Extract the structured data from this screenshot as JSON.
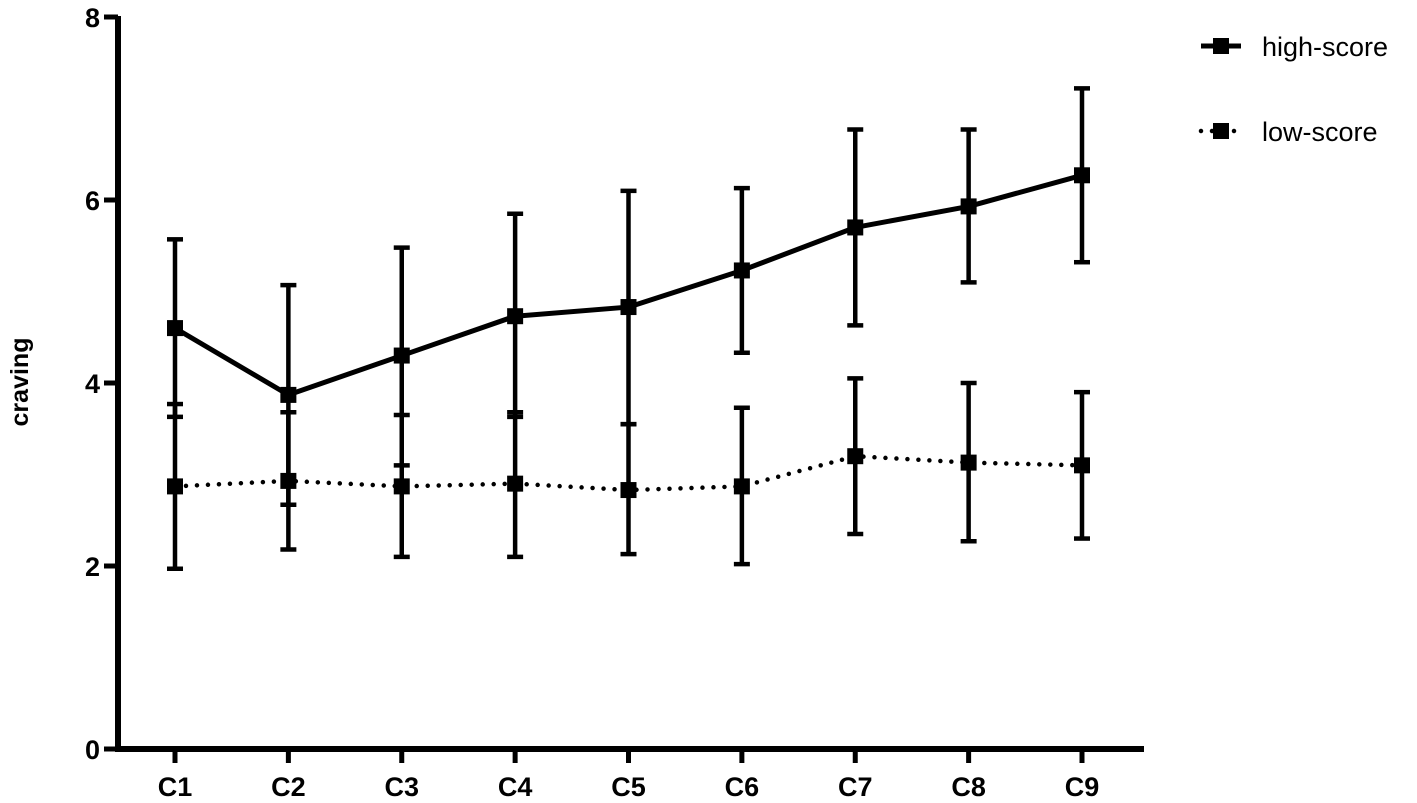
{
  "chart_data": {
    "type": "line",
    "title": "",
    "xlabel": "",
    "ylabel": "craving",
    "ylim": [
      0,
      8
    ],
    "yticks": [
      0,
      2,
      4,
      6,
      8
    ],
    "categories": [
      "C1",
      "C2",
      "C3",
      "C4",
      "C5",
      "C6",
      "C7",
      "C8",
      "C9"
    ],
    "grid": false,
    "legend_position": "top-right",
    "series": [
      {
        "name": "high-score",
        "line_style": "solid",
        "marker": "square",
        "color": "#000000",
        "values": [
          4.6,
          3.87,
          4.3,
          4.73,
          4.83,
          5.23,
          5.7,
          5.93,
          6.27
        ],
        "error_low": [
          3.63,
          2.67,
          3.1,
          3.63,
          3.55,
          4.33,
          4.63,
          5.1,
          5.32
        ],
        "error_high": [
          5.57,
          5.07,
          5.48,
          5.85,
          6.1,
          6.13,
          6.77,
          6.77,
          7.22
        ]
      },
      {
        "name": "low-score",
        "line_style": "dotted",
        "marker": "square",
        "color": "#000000",
        "values": [
          2.87,
          2.93,
          2.87,
          2.9,
          2.83,
          2.87,
          3.2,
          3.13,
          3.1
        ],
        "error_low": [
          1.97,
          2.18,
          2.1,
          2.1,
          2.13,
          2.02,
          2.35,
          2.27,
          2.3
        ],
        "error_high": [
          3.77,
          3.68,
          3.65,
          3.68,
          3.55,
          3.73,
          4.05,
          4.0,
          3.9
        ]
      }
    ]
  }
}
